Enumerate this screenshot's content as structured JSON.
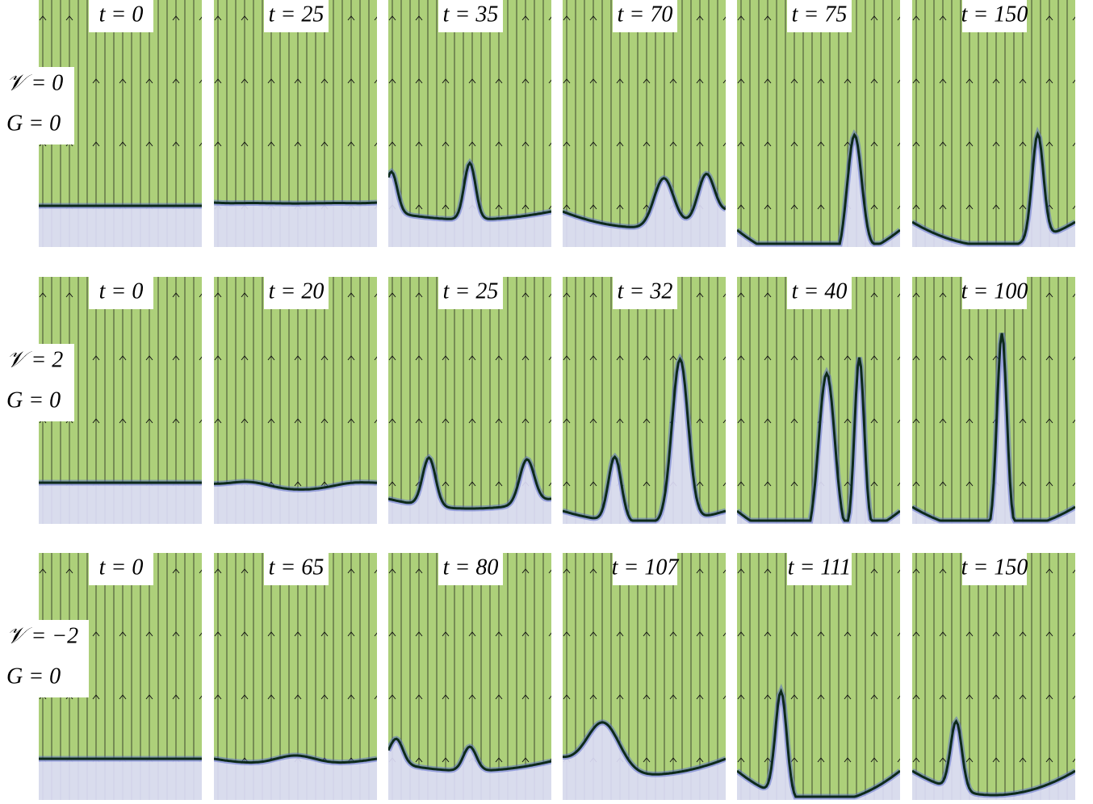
{
  "rows": [
    {
      "v_label": "𝒱 = 0",
      "g_label": "G = 0",
      "panels": [
        "t = 0",
        "t = 25",
        "t = 35",
        "t = 70",
        "t = 75",
        "t = 150"
      ]
    },
    {
      "v_label": "𝒱 = 2",
      "g_label": "G = 0",
      "panels": [
        "t = 0",
        "t = 20",
        "t = 25",
        "t = 32",
        "t = 40",
        "t = 100"
      ]
    },
    {
      "v_label": "𝒱 = −2",
      "g_label": "G = 0",
      "panels": [
        "t = 0",
        "t = 65",
        "t = 80",
        "t = 107",
        "t = 111",
        "t = 150"
      ]
    }
  ]
}
